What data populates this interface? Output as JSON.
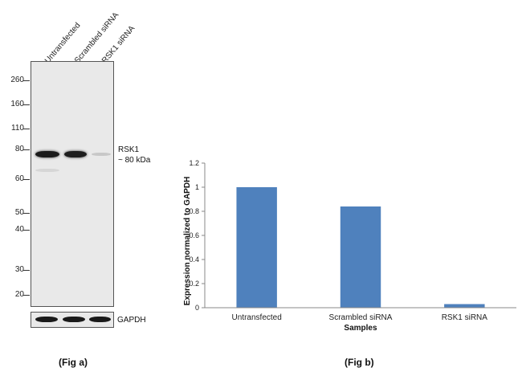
{
  "blot": {
    "lanes": [
      "Untransfected",
      "Scrambled siRNA",
      "RSK1 siRNA"
    ],
    "markers": [
      "260",
      "160",
      "110",
      "80",
      "60",
      "50",
      "40",
      "30",
      "20"
    ],
    "target_label": "RSK1",
    "target_size": "~ 80 kDa",
    "loading_control": "GAPDH",
    "caption": "(Fig a)"
  },
  "chart_data": {
    "type": "bar",
    "categories": [
      "Untransfected",
      "Scrambled siRNA",
      "RSK1 siRNA"
    ],
    "values": [
      1.0,
      0.84,
      0.03
    ],
    "ylim": [
      0,
      1.2
    ],
    "yticks": [
      "0",
      "0.2",
      "0.4",
      "0.6",
      "0.8",
      "1",
      "1.2"
    ],
    "xlabel": "Samples",
    "ylabel": "Expression  normalized to GAPDH",
    "bar_color": "#4f81bd",
    "grid": false,
    "caption": "(Fig b)"
  }
}
